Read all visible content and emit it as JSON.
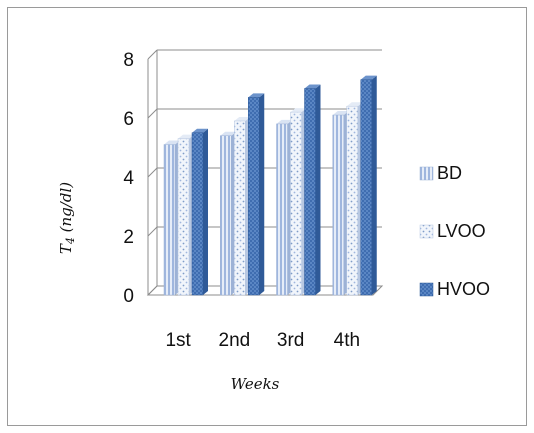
{
  "chart_data": {
    "type": "bar",
    "categories": [
      "1st",
      "2nd",
      "3rd",
      "4th"
    ],
    "series": [
      {
        "name": "BD",
        "values": [
          5.1,
          5.4,
          5.8,
          6.1
        ]
      },
      {
        "name": "LVOO",
        "values": [
          5.3,
          5.9,
          6.2,
          6.4
        ]
      },
      {
        "name": "HVOO",
        "values": [
          5.5,
          6.7,
          7.0,
          7.3
        ]
      }
    ],
    "xlabel": "Weeks",
    "ylabel": "T4 (ng/dl)",
    "ylim": [
      0,
      8
    ],
    "yticks": [
      0,
      2,
      4,
      6,
      8
    ],
    "grid": true,
    "legend_position": "right",
    "style": "3d-clustered-column",
    "colors": {
      "BD": "#c5d3ec",
      "LVOO": "#dbe4f3",
      "HVOO": "#4a76b6",
      "grid": "#8c8c8c",
      "wall": "#ffffff"
    }
  }
}
